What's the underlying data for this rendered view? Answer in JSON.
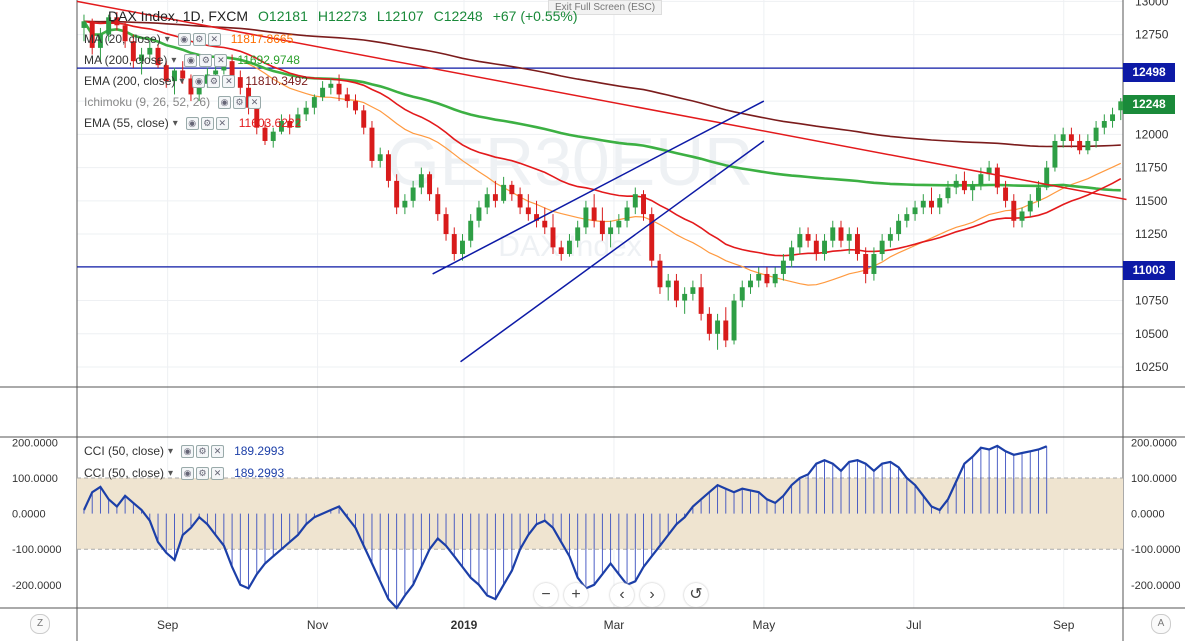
{
  "header": {
    "symbol_title": "DAX Index, 1D, FXCM",
    "ohlc": [
      "O12181",
      "H12273",
      "L12107",
      "C12248",
      "+67 (+0.55%)"
    ],
    "exit_fullscreen": "Exit Full Screen (ESC)"
  },
  "legends": [
    {
      "name": "MA (20, close)",
      "value": "11817.8665",
      "color": "#ff6d00"
    },
    {
      "name": "MA (200, close)",
      "value": "11692.9748",
      "color": "#2ca02c"
    },
    {
      "name": "EMA (200, close)",
      "value": "11810.3492",
      "color": "#7b1c1c"
    },
    {
      "name": "Ichimoku (9, 26, 52, 26)",
      "value": "",
      "color": "#888888"
    },
    {
      "name": "EMA (55, close)",
      "value": "11603.6222",
      "color": "#e31a1c"
    }
  ],
  "cci_legends": [
    {
      "name": "CCI (50, close)",
      "value": "189.2993"
    },
    {
      "name": "CCI (50, close)",
      "value": "189.2993"
    }
  ],
  "watermark": {
    "main": "GER30EUR",
    "sub": "DAX Index"
  },
  "price_labels": [
    {
      "text": "12498",
      "value": 12498,
      "color": "#0d1aa6"
    },
    {
      "text": "12248",
      "value": 12248,
      "color": "#1a8a3a"
    },
    {
      "text": "11003",
      "value": 11003,
      "color": "#0d1aa6"
    }
  ],
  "toolbar": {
    "zoom_out": "−",
    "zoom_in": "+",
    "back": "‹",
    "forward": "›",
    "reset": "↺"
  },
  "corners": {
    "left": "Z",
    "right": "A"
  },
  "chart_data": {
    "type": "candlestick",
    "price_axis": {
      "ticks": [
        10250,
        10500,
        10750,
        11000,
        11250,
        11500,
        11750,
        12000,
        12250,
        12500,
        12750,
        13000
      ],
      "range": [
        10100,
        13010
      ]
    },
    "cci_axis": {
      "ticks": [
        "200.0000",
        "100.0000",
        "0.0000",
        "-100.0000",
        "-200.0000"
      ],
      "values": [
        200,
        100,
        0,
        -100,
        -200
      ],
      "range": [
        -265,
        215
      ]
    },
    "time_axis": {
      "labels": [
        "Sep",
        "Nov",
        "2019",
        "Mar",
        "May",
        "Jul",
        "Sep"
      ],
      "bar_index": [
        26,
        69,
        111,
        154,
        197,
        240,
        283
      ]
    },
    "bars_range": [
      0,
      300
    ],
    "horizontal_levels": [
      12498,
      11003
    ],
    "trendlines": [
      {
        "from": [
          0,
          13000
        ],
        "to": [
          301,
          11510
        ],
        "color": "#e31a1c"
      },
      {
        "from": [
          102,
          10950
        ],
        "to": [
          197,
          12250
        ],
        "color": "#0d1aa6"
      },
      {
        "from": [
          110,
          10290
        ],
        "to": [
          197,
          11950
        ],
        "color": "#0d1aa6"
      }
    ],
    "candles": [
      [
        12800,
        12900,
        12700,
        12850
      ],
      [
        12850,
        12870,
        12600,
        12650
      ],
      [
        12650,
        12800,
        12550,
        12750
      ],
      [
        12750,
        12900,
        12700,
        12880
      ],
      [
        12880,
        12920,
        12780,
        12820
      ],
      [
        12820,
        12850,
        12650,
        12700
      ],
      [
        12700,
        12750,
        12500,
        12550
      ],
      [
        12550,
        12650,
        12450,
        12600
      ],
      [
        12600,
        12700,
        12550,
        12650
      ],
      [
        12650,
        12680,
        12500,
        12520
      ],
      [
        12520,
        12550,
        12350,
        12400
      ],
      [
        12400,
        12500,
        12300,
        12480
      ],
      [
        12480,
        12550,
        12380,
        12420
      ],
      [
        12420,
        12450,
        12250,
        12300
      ],
      [
        12300,
        12400,
        12250,
        12380
      ],
      [
        12380,
        12500,
        12350,
        12450
      ],
      [
        12450,
        12520,
        12400,
        12480
      ],
      [
        12480,
        12600,
        12450,
        12550
      ],
      [
        12550,
        12600,
        12400,
        12430
      ],
      [
        12430,
        12480,
        12300,
        12350
      ],
      [
        12350,
        12380,
        12150,
        12200
      ],
      [
        12200,
        12250,
        12000,
        12050
      ],
      [
        12050,
        12100,
        11920,
        11950
      ],
      [
        11950,
        12050,
        11900,
        12020
      ],
      [
        12020,
        12150,
        12000,
        12100
      ],
      [
        12100,
        12150,
        12000,
        12050
      ],
      [
        12050,
        12200,
        12050,
        12150
      ],
      [
        12150,
        12250,
        12100,
        12200
      ],
      [
        12200,
        12300,
        12150,
        12280
      ],
      [
        12280,
        12400,
        12250,
        12350
      ],
      [
        12350,
        12420,
        12300,
        12380
      ],
      [
        12380,
        12450,
        12250,
        12300
      ],
      [
        12300,
        12350,
        12200,
        12250
      ],
      [
        12250,
        12300,
        12150,
        12180
      ],
      [
        12180,
        12220,
        12000,
        12050
      ],
      [
        12050,
        12100,
        11750,
        11800
      ],
      [
        11800,
        11900,
        11750,
        11850
      ],
      [
        11850,
        11880,
        11600,
        11650
      ],
      [
        11650,
        11700,
        11400,
        11450
      ],
      [
        11450,
        11550,
        11400,
        11500
      ],
      [
        11500,
        11650,
        11450,
        11600
      ],
      [
        11600,
        11750,
        11550,
        11700
      ],
      [
        11700,
        11720,
        11500,
        11550
      ],
      [
        11550,
        11600,
        11350,
        11400
      ],
      [
        11400,
        11450,
        11200,
        11250
      ],
      [
        11250,
        11300,
        11050,
        11100
      ],
      [
        11100,
        11250,
        11050,
        11200
      ],
      [
        11200,
        11400,
        11150,
        11350
      ],
      [
        11350,
        11500,
        11300,
        11450
      ],
      [
        11450,
        11600,
        11400,
        11550
      ],
      [
        11550,
        11650,
        11450,
        11500
      ],
      [
        11500,
        11680,
        11480,
        11620
      ],
      [
        11620,
        11650,
        11500,
        11550
      ],
      [
        11550,
        11600,
        11400,
        11450
      ],
      [
        11450,
        11550,
        11350,
        11400
      ],
      [
        11400,
        11500,
        11300,
        11350
      ],
      [
        11350,
        11450,
        11250,
        11300
      ],
      [
        11300,
        11400,
        11100,
        11150
      ],
      [
        11150,
        11200,
        11050,
        11100
      ],
      [
        11100,
        11250,
        11080,
        11200
      ],
      [
        11200,
        11350,
        11150,
        11300
      ],
      [
        11300,
        11500,
        11250,
        11450
      ],
      [
        11450,
        11550,
        11300,
        11350
      ],
      [
        11350,
        11450,
        11200,
        11250
      ],
      [
        11250,
        11350,
        11150,
        11300
      ],
      [
        11300,
        11400,
        11250,
        11350
      ],
      [
        11350,
        11500,
        11300,
        11450
      ],
      [
        11450,
        11600,
        11400,
        11550
      ],
      [
        11550,
        11580,
        11350,
        11400
      ],
      [
        11400,
        11450,
        11000,
        11050
      ],
      [
        11050,
        11100,
        10800,
        10850
      ],
      [
        10850,
        10950,
        10750,
        10900
      ],
      [
        10900,
        10950,
        10700,
        10750
      ],
      [
        10750,
        10850,
        10650,
        10800
      ],
      [
        10800,
        10900,
        10750,
        10850
      ],
      [
        10850,
        10950,
        10600,
        10650
      ],
      [
        10650,
        10700,
        10450,
        10500
      ],
      [
        10500,
        10650,
        10380,
        10600
      ],
      [
        10600,
        10700,
        10400,
        10450
      ],
      [
        10450,
        10800,
        10420,
        10750
      ],
      [
        10750,
        10900,
        10700,
        10850
      ],
      [
        10850,
        10950,
        10800,
        10900
      ],
      [
        10900,
        11000,
        10850,
        10950
      ],
      [
        10950,
        11000,
        10850,
        10880
      ],
      [
        10880,
        11000,
        10850,
        10950
      ],
      [
        10950,
        11100,
        10900,
        11050
      ],
      [
        11050,
        11200,
        11000,
        11150
      ],
      [
        11150,
        11300,
        11100,
        11250
      ],
      [
        11250,
        11300,
        11150,
        11200
      ],
      [
        11200,
        11250,
        11050,
        11100
      ],
      [
        11100,
        11250,
        11050,
        11200
      ],
      [
        11200,
        11350,
        11150,
        11300
      ],
      [
        11300,
        11350,
        11150,
        11200
      ],
      [
        11200,
        11300,
        11100,
        11250
      ],
      [
        11250,
        11300,
        11050,
        11100
      ],
      [
        11100,
        11150,
        10880,
        10950
      ],
      [
        10950,
        11150,
        10900,
        11100
      ],
      [
        11100,
        11250,
        11050,
        11200
      ],
      [
        11200,
        11300,
        11150,
        11250
      ],
      [
        11250,
        11400,
        11200,
        11350
      ],
      [
        11350,
        11450,
        11300,
        11400
      ],
      [
        11400,
        11500,
        11350,
        11450
      ],
      [
        11450,
        11550,
        11400,
        11500
      ],
      [
        11500,
        11600,
        11400,
        11450
      ],
      [
        11450,
        11550,
        11400,
        11520
      ],
      [
        11520,
        11650,
        11480,
        11600
      ],
      [
        11600,
        11700,
        11550,
        11650
      ],
      [
        11650,
        11720,
        11550,
        11580
      ],
      [
        11580,
        11650,
        11500,
        11620
      ],
      [
        11620,
        11750,
        11580,
        11700
      ],
      [
        11700,
        11800,
        11650,
        11750
      ],
      [
        11750,
        11780,
        11550,
        11600
      ],
      [
        11600,
        11650,
        11450,
        11500
      ],
      [
        11500,
        11550,
        11300,
        11350
      ],
      [
        11350,
        11450,
        11300,
        11420
      ],
      [
        11420,
        11550,
        11380,
        11500
      ],
      [
        11500,
        11650,
        11450,
        11600
      ],
      [
        11600,
        11800,
        11580,
        11750
      ],
      [
        11750,
        12000,
        11720,
        11950
      ],
      [
        11950,
        12050,
        11900,
        12000
      ],
      [
        12000,
        12050,
        11900,
        11950
      ],
      [
        11950,
        12000,
        11850,
        11880
      ],
      [
        11880,
        12000,
        11850,
        11950
      ],
      [
        11950,
        12100,
        11900,
        12050
      ],
      [
        12050,
        12150,
        12000,
        12100
      ],
      [
        12100,
        12200,
        12050,
        12150
      ],
      [
        12181,
        12273,
        12107,
        12248
      ]
    ],
    "cci": [
      10,
      60,
      75,
      40,
      20,
      50,
      30,
      10,
      -20,
      -80,
      -110,
      -130,
      -60,
      -40,
      -10,
      -30,
      -60,
      -90,
      -150,
      -200,
      -210,
      -170,
      -140,
      -120,
      -100,
      -80,
      -60,
      -30,
      -10,
      0,
      10,
      20,
      -10,
      -40,
      -90,
      -140,
      -190,
      -240,
      -265,
      -230,
      -200,
      -150,
      -100,
      -70,
      -90,
      -120,
      -150,
      -180,
      -200,
      -230,
      -240,
      -200,
      -160,
      -100,
      -60,
      -30,
      -20,
      -40,
      -80,
      -120,
      -180,
      -210,
      -200,
      -170,
      -140,
      -170,
      -200,
      -190,
      -150,
      -120,
      -90,
      -60,
      -30,
      -10,
      20,
      40,
      60,
      80,
      70,
      60,
      70,
      65,
      60,
      40,
      30,
      50,
      80,
      100,
      110,
      140,
      150,
      140,
      120,
      145,
      150,
      140,
      120,
      140,
      145,
      130,
      100,
      80,
      50,
      20,
      10,
      40,
      90,
      140,
      160,
      185,
      180,
      190,
      175,
      165,
      170,
      175,
      180,
      189
    ]
  }
}
